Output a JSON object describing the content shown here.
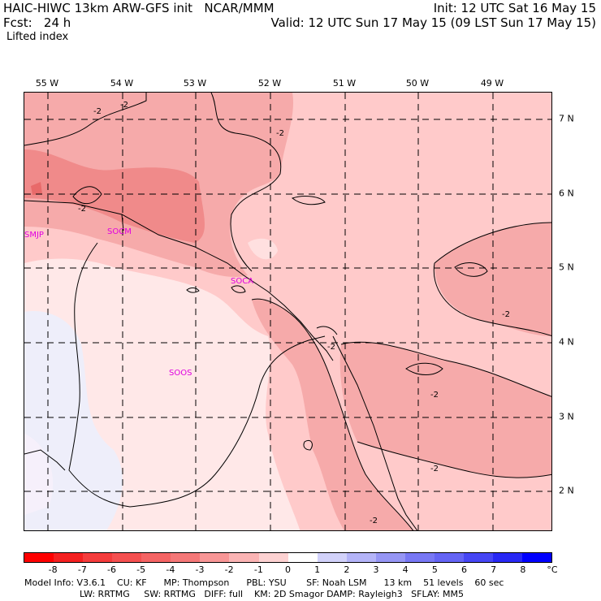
{
  "header": {
    "title": "HAIC-HIWC 13km ARW-GFS init   NCAR/MMM",
    "init": "Init: 12 UTC Sat 16 May 15",
    "fcst": "Fcst:   24 h",
    "valid": "Valid: 12 UTC Sun 17 May 15 (09 LST Sun 17 May 15)",
    "field": "Lifted index"
  },
  "map": {
    "lon_labels": [
      "55 W",
      "54 W",
      "53 W",
      "52 W",
      "51 W",
      "50 W",
      "49 W"
    ],
    "lat_labels": [
      "7 N",
      "6 N",
      "5 N",
      "4 N",
      "3 N",
      "2 N"
    ],
    "stations": [
      "SMJP",
      "SOCM",
      "SOCA",
      "SOOS"
    ],
    "contour_labels": [
      "-2",
      "-2",
      "-2",
      "-2",
      "-2",
      "-2",
      "-2",
      "-2",
      "-2"
    ],
    "colors": {
      "level_m3": "#f08a8a",
      "level_m2": "#f6aaaa",
      "level_m1": "#ffcaca",
      "level_0": "#ffe8e8",
      "level_p1": "#eeeefa"
    }
  },
  "colorbar": {
    "ticks": [
      "-8",
      "-7",
      "-6",
      "-5",
      "-4",
      "-3",
      "-2",
      "-1",
      "0",
      "1",
      "2",
      "3",
      "4",
      "5",
      "6",
      "7",
      "8"
    ],
    "unit": "°C",
    "colors": [
      "#ff0000",
      "#f52020",
      "#f53c3c",
      "#f55050",
      "#f56464",
      "#f57878",
      "#f89696",
      "#fbb4b4",
      "#fdd2d2",
      "#ffffff",
      "#d2d2fa",
      "#b4b4f8",
      "#9696f5",
      "#7878f5",
      "#6464f5",
      "#4646f5",
      "#2828f5",
      "#0000ff"
    ]
  },
  "footer": {
    "line1": "Model Info: V3.6.1    CU: KF      MP: Thompson      PBL: YSU       SF: Noah LSM      13 km    51 levels    60 sec",
    "line2": "LW: RRTMG     SW: RRTMG   DIFF: full    KM: 2D Smagor DAMP: Rayleigh3   SFLAY: MM5"
  }
}
